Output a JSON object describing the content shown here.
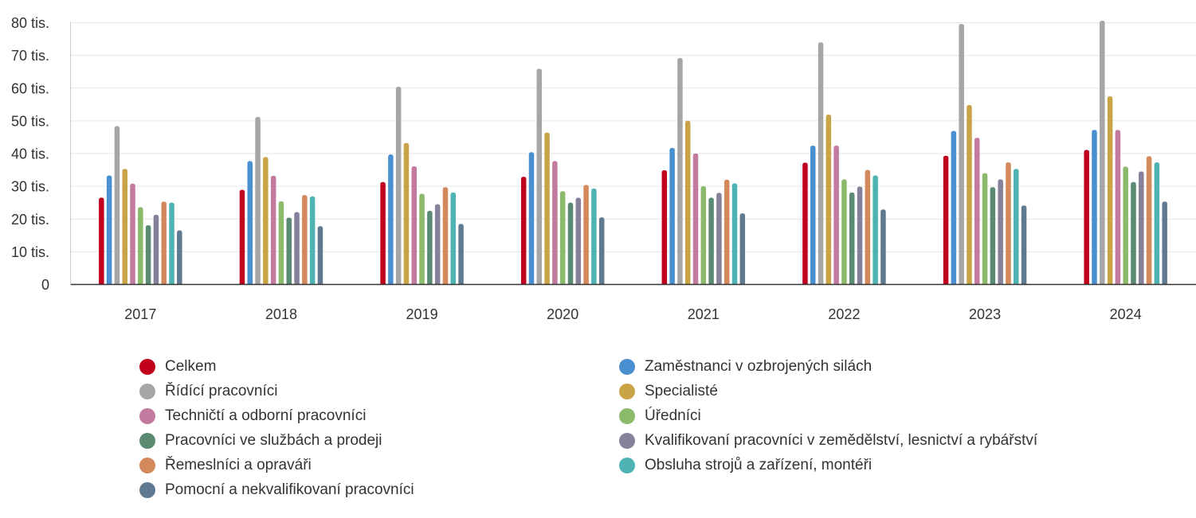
{
  "chart_data": {
    "type": "bar",
    "title": "",
    "xlabel": "",
    "ylabel": "",
    "categories": [
      "2017",
      "2018",
      "2019",
      "2020",
      "2021",
      "2022",
      "2023",
      "2024"
    ],
    "ylim": [
      0,
      80000
    ],
    "y_ticks": [
      {
        "value": 0,
        "label": "0"
      },
      {
        "value": 10000,
        "label": "10 tis."
      },
      {
        "value": 20000,
        "label": "20 tis."
      },
      {
        "value": 30000,
        "label": "30 tis."
      },
      {
        "value": 40000,
        "label": "40 tis."
      },
      {
        "value": 50000,
        "label": "50 tis."
      },
      {
        "value": 60000,
        "label": "60 tis."
      },
      {
        "value": 70000,
        "label": "70 tis."
      },
      {
        "value": 80000,
        "label": "80 tis."
      }
    ],
    "grid": true,
    "legend_position": "bottom",
    "series": [
      {
        "name": "Celkem",
        "color": "#c0001d",
        "values": [
          26400,
          28800,
          31200,
          32800,
          34800,
          37100,
          39200,
          41000
        ]
      },
      {
        "name": "Zaměstnanci v ozbrojených silách",
        "color": "#4a90d0",
        "values": [
          33200,
          37600,
          39600,
          40300,
          41600,
          42300,
          46800,
          47100
        ]
      },
      {
        "name": "Řídící pracovníci",
        "color": "#a6a6a6",
        "values": [
          48300,
          51100,
          60300,
          65800,
          69100,
          73900,
          79500,
          80500
        ]
      },
      {
        "name": "Specialisté",
        "color": "#c9a447",
        "values": [
          35200,
          38800,
          43100,
          46300,
          49900,
          51800,
          54700,
          57400
        ]
      },
      {
        "name": "Techničtí a odborní pracovníci",
        "color": "#c27a9e",
        "values": [
          30700,
          33100,
          36000,
          37600,
          39900,
          42300,
          44700,
          47100
        ]
      },
      {
        "name": "Úředníci",
        "color": "#8cba6b",
        "values": [
          23500,
          25300,
          27600,
          28400,
          29900,
          32000,
          33900,
          35900
        ]
      },
      {
        "name": "Pracovníci ve službách a prodeji",
        "color": "#5b8a72",
        "values": [
          18000,
          20300,
          22400,
          24900,
          26400,
          28000,
          29600,
          31200
        ]
      },
      {
        "name": "Kvalifikovaní pracovníci v zemědělství, lesnictví a rybářství",
        "color": "#86819a",
        "values": [
          21200,
          22000,
          24400,
          26400,
          27900,
          29800,
          32000,
          34400
        ]
      },
      {
        "name": "Řemeslníci a opraváři",
        "color": "#d4895c",
        "values": [
          25200,
          27200,
          29600,
          30300,
          31900,
          34900,
          37200,
          39100
        ]
      },
      {
        "name": "Obsluha strojů a zařízení, montéři",
        "color": "#4fb3b3",
        "values": [
          24900,
          26800,
          28000,
          29200,
          30800,
          33200,
          35200,
          37200
        ]
      },
      {
        "name": "Pomocní a nekvalifikovaní pracovníci",
        "color": "#5f7a90",
        "values": [
          16400,
          17700,
          18400,
          20400,
          21600,
          22800,
          24000,
          25200
        ]
      }
    ]
  }
}
